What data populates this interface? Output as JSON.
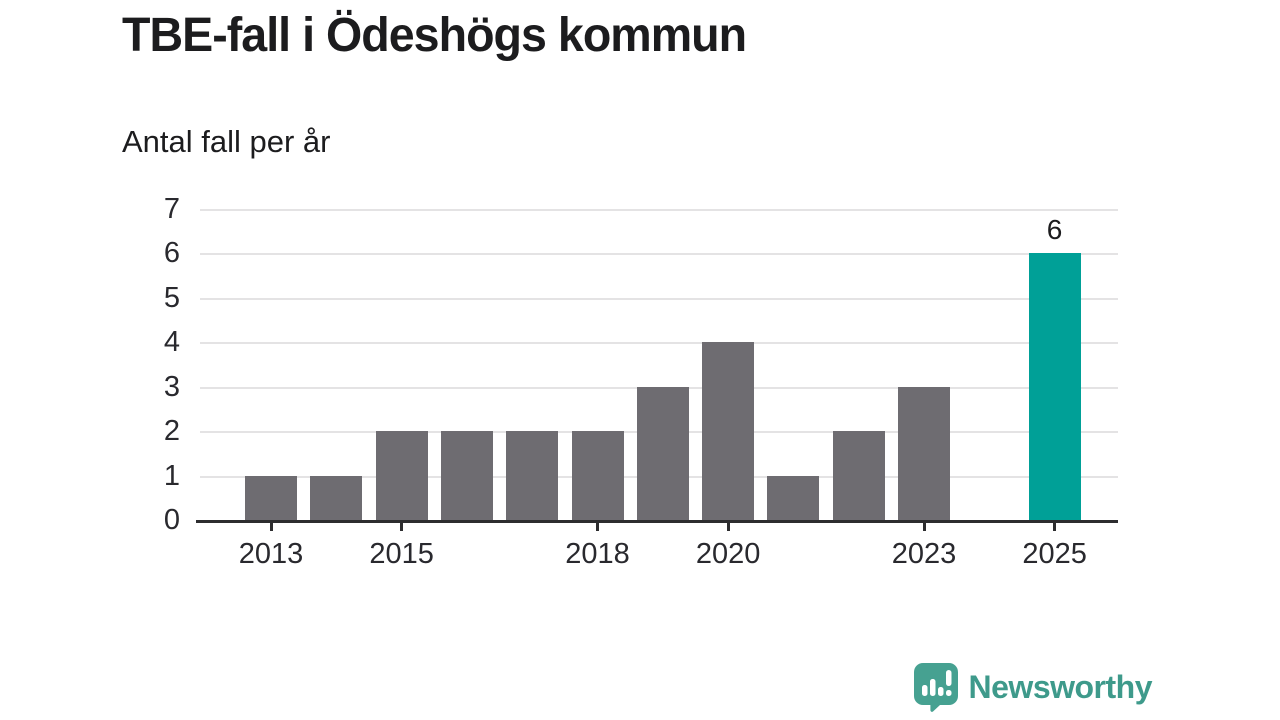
{
  "header": {
    "title": "TBE-fall i Ödeshögs kommun",
    "subtitle": "Antal fall per år"
  },
  "chart_data": {
    "type": "bar",
    "title": "TBE-fall i Ödeshögs kommun",
    "subtitle": "Antal fall per år",
    "categories": [
      2013,
      2014,
      2015,
      2016,
      2017,
      2018,
      2019,
      2020,
      2021,
      2022,
      2023,
      2024,
      2025
    ],
    "values": [
      1,
      1,
      2,
      2,
      2,
      2,
      3,
      4,
      1,
      2,
      3,
      0,
      6
    ],
    "xlabel": "",
    "ylabel": "Antal fall",
    "ylim": [
      0,
      7
    ],
    "yticks": [
      0,
      1,
      2,
      3,
      4,
      5,
      6,
      7
    ],
    "xtick_labels": [
      2013,
      2015,
      2018,
      2020,
      2023,
      2025
    ],
    "grid": true,
    "legend": false,
    "bar_color": "#6e6c71",
    "highlight_year": 2025,
    "highlight_color": "#00a097",
    "annotations": [
      {
        "year": 2025,
        "text": "6"
      }
    ]
  },
  "footer": {
    "brand": "Newsworthy",
    "logo_icon": "newsworthy-speech-bubble-chart-icon",
    "brand_color": "#3e9a8b",
    "icon_color": "#46a191"
  }
}
